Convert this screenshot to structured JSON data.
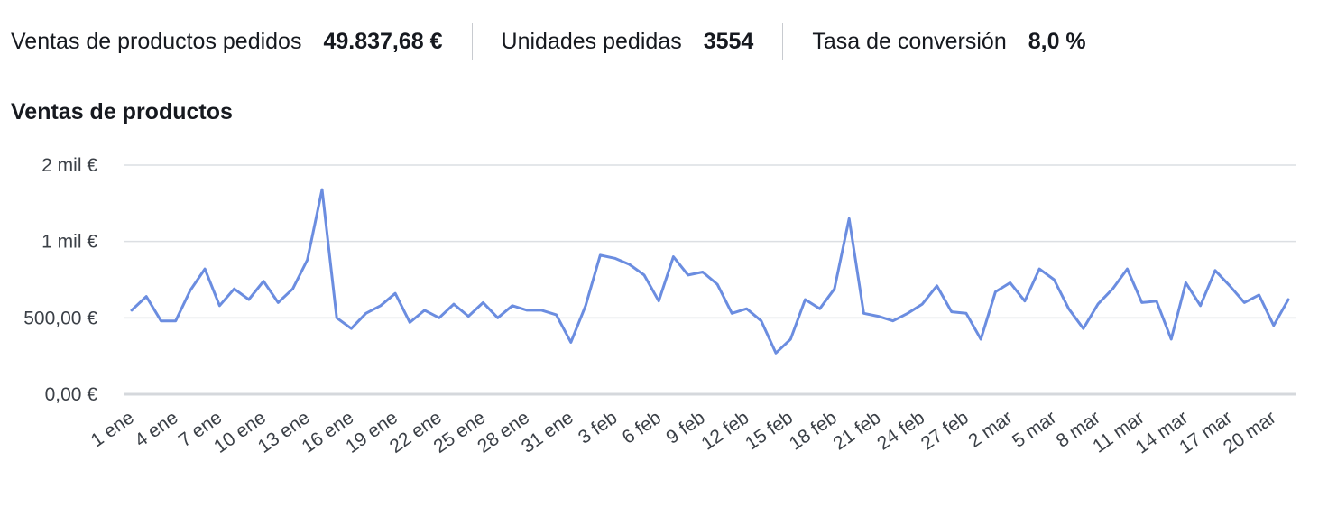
{
  "kpis": [
    {
      "label": "Ventas de productos pedidos",
      "value": "49.837,68 €"
    },
    {
      "label": "Unidades pedidas",
      "value": "3554"
    },
    {
      "label": "Tasa de conversión",
      "value": "8,0 %"
    }
  ],
  "colors": {
    "line": "#6b8de0",
    "grid": "#dcdfe3",
    "axis": "#d5d8dc"
  },
  "chart_data": {
    "type": "line",
    "title": "Ventas de productos",
    "xlabel": "",
    "ylabel": "",
    "ylim": [
      0,
      1500
    ],
    "yticks": [
      {
        "value": 0,
        "label": "0,00 €"
      },
      {
        "value": 500,
        "label": "500,00 €"
      },
      {
        "value": 1000,
        "label": "1 mil €"
      },
      {
        "value": 1500,
        "label": "2 mil €"
      }
    ],
    "xticks": [
      {
        "index": 0,
        "label": "1 ene"
      },
      {
        "index": 3,
        "label": "4 ene"
      },
      {
        "index": 6,
        "label": "7 ene"
      },
      {
        "index": 9,
        "label": "10 ene"
      },
      {
        "index": 12,
        "label": "13 ene"
      },
      {
        "index": 15,
        "label": "16 ene"
      },
      {
        "index": 18,
        "label": "19 ene"
      },
      {
        "index": 21,
        "label": "22 ene"
      },
      {
        "index": 24,
        "label": "25 ene"
      },
      {
        "index": 27,
        "label": "28 ene"
      },
      {
        "index": 30,
        "label": "31 ene"
      },
      {
        "index": 33,
        "label": "3 feb"
      },
      {
        "index": 36,
        "label": "6 feb"
      },
      {
        "index": 39,
        "label": "9 feb"
      },
      {
        "index": 42,
        "label": "12 feb"
      },
      {
        "index": 45,
        "label": "15 feb"
      },
      {
        "index": 48,
        "label": "18 feb"
      },
      {
        "index": 51,
        "label": "21 feb"
      },
      {
        "index": 54,
        "label": "24 feb"
      },
      {
        "index": 57,
        "label": "27 feb"
      },
      {
        "index": 60,
        "label": "2 mar"
      },
      {
        "index": 63,
        "label": "5 mar"
      },
      {
        "index": 66,
        "label": "8 mar"
      },
      {
        "index": 69,
        "label": "11 mar"
      },
      {
        "index": 72,
        "label": "14 mar"
      },
      {
        "index": 75,
        "label": "17 mar"
      },
      {
        "index": 78,
        "label": "20 mar"
      }
    ],
    "series": [
      {
        "name": "Ventas de productos",
        "values": [
          550,
          640,
          480,
          480,
          680,
          820,
          580,
          690,
          620,
          740,
          600,
          690,
          880,
          1340,
          500,
          430,
          530,
          580,
          660,
          470,
          550,
          500,
          590,
          510,
          600,
          500,
          580,
          550,
          550,
          520,
          340,
          580,
          910,
          890,
          850,
          780,
          610,
          900,
          780,
          800,
          720,
          530,
          560,
          480,
          270,
          360,
          620,
          560,
          690,
          1150,
          530,
          510,
          480,
          530,
          590,
          710,
          540,
          530,
          360,
          670,
          730,
          610,
          820,
          750,
          560,
          430,
          590,
          690,
          820,
          600,
          610,
          360,
          730,
          580,
          810,
          710,
          600,
          650,
          450,
          620
        ]
      }
    ]
  }
}
